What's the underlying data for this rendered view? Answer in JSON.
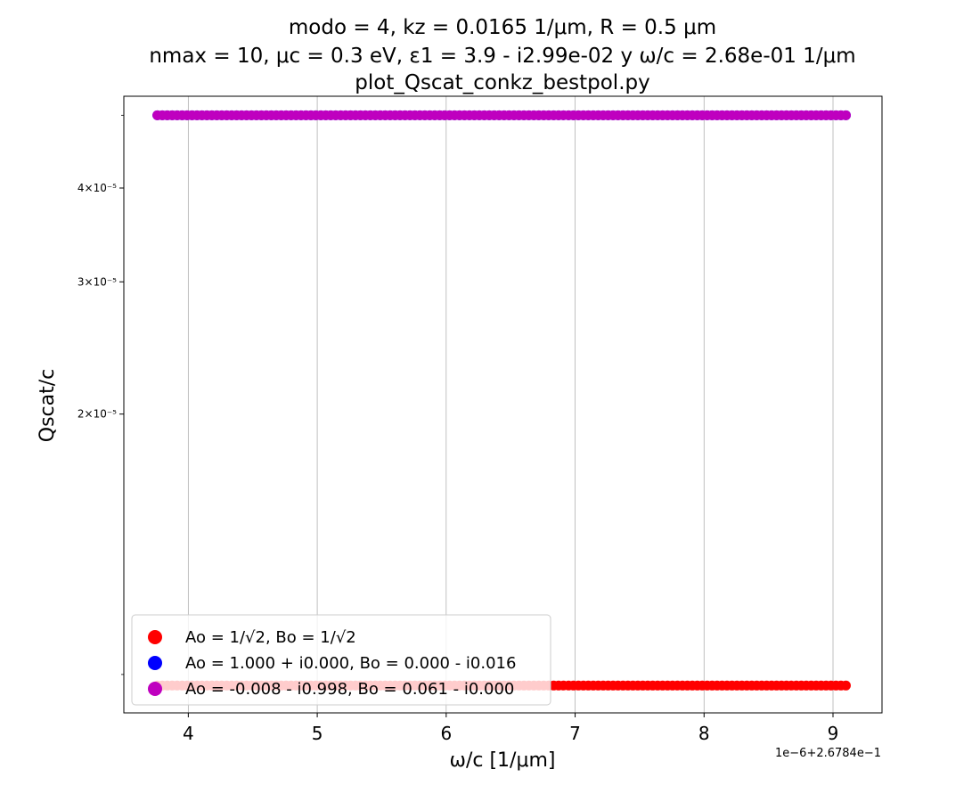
{
  "chart_data": {
    "type": "scatter",
    "title_lines": [
      "modo = 4, kz = 0.0165 1/μm, R = 0.5 μm",
      "nmax = 10, μc = 0.3 eV, ε1 = 3.9 - i2.99e-02 y ω/c = 2.68e-01 1/μm",
      "plot_Qscat_conkz_bestpol.py"
    ],
    "xlabel": "ω/c [1/μm]",
    "ylabel": "Qscat/c",
    "x_offset_label": "1e−6+2.6784e−1",
    "xlim": [
      3.5,
      9.38
    ],
    "xticks": [
      4,
      5,
      6,
      7,
      8,
      9
    ],
    "y_scale": "log",
    "ylim": [
      8e-06,
      5.3e-05
    ],
    "yticks": [
      {
        "value": 4e-05,
        "label": "4×10⁻⁵"
      },
      {
        "value": 3e-05,
        "label": "3×10⁻⁵"
      },
      {
        "value": 2e-05,
        "label": "2×10⁻⁵"
      }
    ],
    "grid": "x-only",
    "legend_position": "lower-left",
    "series": [
      {
        "name": "Ao = 1/√2, Bo = 1/√2",
        "color": "#ff0000",
        "x_range": [
          3.76,
          9.1
        ],
        "y": 8.7e-06
      },
      {
        "name": "Ao = 1.000 + i0.000, Bo = 0.000 - i0.016",
        "color": "#0000ff",
        "x_range": [
          3.76,
          9.1
        ],
        "y": 5e-05
      },
      {
        "name": "Ao = -0.008 - i0.998, Bo = 0.061 - i0.000",
        "color": "#bf00bf",
        "x_range": [
          3.76,
          9.1
        ],
        "y": 5e-05
      }
    ]
  }
}
